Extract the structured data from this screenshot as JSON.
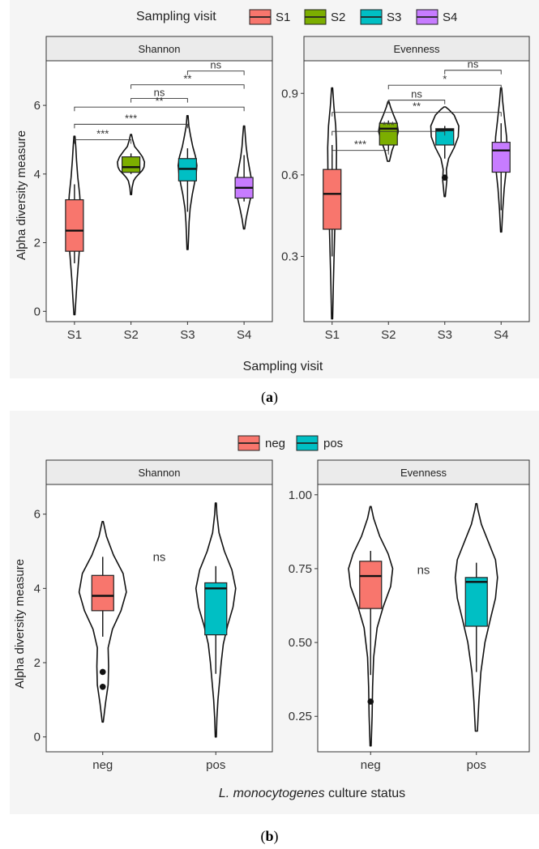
{
  "panel_a": {
    "caption_letter": "a",
    "legend": {
      "title": "Sampling visit",
      "items": [
        {
          "label": "S1",
          "color": "#f8766d"
        },
        {
          "label": "S2",
          "color": "#7cae00"
        },
        {
          "label": "S3",
          "color": "#00bfc4"
        },
        {
          "label": "S4",
          "color": "#c77cff"
        }
      ]
    },
    "xlabel": "Sampling visit",
    "ylabel": "Alpha diversity measure"
  },
  "panel_b": {
    "caption_letter": "b",
    "legend": {
      "items": [
        {
          "label": "neg",
          "color": "#f8766d"
        },
        {
          "label": "pos",
          "color": "#00bfc4"
        }
      ]
    },
    "xlabel_italic": "L. monocytogenes",
    "xlabel_rest": " culture status",
    "ylabel": "Alpha diversity measure"
  },
  "chart_data": [
    {
      "type": "violin",
      "facet": "Shannon",
      "categories": [
        "S1",
        "S2",
        "S3",
        "S4"
      ],
      "ylim": [
        -0.3,
        7.3
      ],
      "yticks": [
        0,
        2,
        4,
        6
      ],
      "ytick_labels": [
        "0",
        "2",
        "4",
        "6"
      ],
      "boxes": [
        {
          "q1": 1.75,
          "median": 2.35,
          "q3": 3.25,
          "whisker_low": 1.4,
          "whisker_high": 3.7,
          "outliers": []
        },
        {
          "q1": 4.05,
          "median": 4.2,
          "q3": 4.5,
          "whisker_low": 4.0,
          "whisker_high": 4.6,
          "outliers": []
        },
        {
          "q1": 3.8,
          "median": 4.15,
          "q3": 4.45,
          "whisker_low": 2.9,
          "whisker_high": 4.75,
          "outliers": []
        },
        {
          "q1": 3.3,
          "median": 3.6,
          "q3": 3.9,
          "whisker_low": 3.2,
          "whisker_high": 4.55,
          "outliers": []
        }
      ],
      "violins": [
        [
          [
            -0.1,
            0.02
          ],
          [
            0.4,
            0.06
          ],
          [
            0.9,
            0.1
          ],
          [
            1.4,
            0.15
          ],
          [
            1.9,
            0.2
          ],
          [
            2.4,
            0.23
          ],
          [
            2.9,
            0.24
          ],
          [
            3.4,
            0.2
          ],
          [
            3.9,
            0.13
          ],
          [
            4.4,
            0.08
          ],
          [
            4.8,
            0.05
          ],
          [
            5.1,
            0.02
          ]
        ],
        [
          [
            3.4,
            0.02
          ],
          [
            3.6,
            0.04
          ],
          [
            3.8,
            0.1
          ],
          [
            3.9,
            0.18
          ],
          [
            4.0,
            0.3
          ],
          [
            4.1,
            0.43
          ],
          [
            4.2,
            0.5
          ],
          [
            4.35,
            0.52
          ],
          [
            4.5,
            0.44
          ],
          [
            4.65,
            0.3
          ],
          [
            4.8,
            0.14
          ],
          [
            5.0,
            0.06
          ],
          [
            5.15,
            0.02
          ]
        ],
        [
          [
            1.8,
            0.02
          ],
          [
            2.2,
            0.04
          ],
          [
            2.6,
            0.06
          ],
          [
            3.0,
            0.1
          ],
          [
            3.4,
            0.18
          ],
          [
            3.7,
            0.26
          ],
          [
            4.0,
            0.33
          ],
          [
            4.25,
            0.36
          ],
          [
            4.5,
            0.31
          ],
          [
            4.8,
            0.2
          ],
          [
            5.1,
            0.12
          ],
          [
            5.4,
            0.05
          ],
          [
            5.7,
            0.02
          ]
        ],
        [
          [
            2.4,
            0.02
          ],
          [
            2.7,
            0.08
          ],
          [
            3.0,
            0.16
          ],
          [
            3.3,
            0.25
          ],
          [
            3.6,
            0.3
          ],
          [
            3.9,
            0.27
          ],
          [
            4.2,
            0.2
          ],
          [
            4.5,
            0.13
          ],
          [
            4.8,
            0.08
          ],
          [
            5.1,
            0.05
          ],
          [
            5.4,
            0.02
          ]
        ]
      ],
      "significance": [
        {
          "from": "S3",
          "to": "S4",
          "label": "ns",
          "y": 7.0
        },
        {
          "from": "S2",
          "to": "S4",
          "label": "**",
          "y": 6.6
        },
        {
          "from": "S2",
          "to": "S3",
          "label": "ns",
          "y": 6.2
        },
        {
          "from": "S1",
          "to": "S4",
          "label": "**",
          "y": 5.95
        },
        {
          "from": "S1",
          "to": "S3",
          "label": "***",
          "y": 5.45
        },
        {
          "from": "S1",
          "to": "S2",
          "label": "***",
          "y": 5.0
        }
      ]
    },
    {
      "type": "violin",
      "facet": "Evenness",
      "categories": [
        "S1",
        "S2",
        "S3",
        "S4"
      ],
      "ylim": [
        0.06,
        1.02
      ],
      "yticks": [
        0.3,
        0.6,
        0.9
      ],
      "ytick_labels": [
        "0.3",
        "0.6",
        "0.9"
      ],
      "boxes": [
        {
          "q1": 0.4,
          "median": 0.53,
          "q3": 0.62,
          "whisker_low": 0.3,
          "whisker_high": 0.71,
          "outliers": []
        },
        {
          "q1": 0.71,
          "median": 0.77,
          "q3": 0.79,
          "whisker_low": 0.69,
          "whisker_high": 0.8,
          "outliers": []
        },
        {
          "q1": 0.71,
          "median": 0.765,
          "q3": 0.77,
          "whisker_low": 0.66,
          "whisker_high": 0.78,
          "outliers": [
            0.59
          ]
        },
        {
          "q1": 0.61,
          "median": 0.69,
          "q3": 0.72,
          "whisker_low": 0.47,
          "whisker_high": 0.79,
          "outliers": []
        }
      ],
      "violins": [
        [
          [
            0.07,
            0.02
          ],
          [
            0.2,
            0.05
          ],
          [
            0.35,
            0.09
          ],
          [
            0.5,
            0.13
          ],
          [
            0.6,
            0.16
          ],
          [
            0.7,
            0.17
          ],
          [
            0.78,
            0.14
          ],
          [
            0.85,
            0.07
          ],
          [
            0.92,
            0.02
          ]
        ],
        [
          [
            0.65,
            0.04
          ],
          [
            0.69,
            0.14
          ],
          [
            0.73,
            0.3
          ],
          [
            0.76,
            0.38
          ],
          [
            0.79,
            0.33
          ],
          [
            0.82,
            0.2
          ],
          [
            0.85,
            0.08
          ],
          [
            0.87,
            0.02
          ]
        ],
        [
          [
            0.52,
            0.02
          ],
          [
            0.58,
            0.08
          ],
          [
            0.62,
            0.06
          ],
          [
            0.66,
            0.15
          ],
          [
            0.7,
            0.36
          ],
          [
            0.74,
            0.52
          ],
          [
            0.78,
            0.54
          ],
          [
            0.82,
            0.36
          ],
          [
            0.84,
            0.16
          ],
          [
            0.85,
            0.03
          ]
        ],
        [
          [
            0.39,
            0.02
          ],
          [
            0.47,
            0.06
          ],
          [
            0.55,
            0.12
          ],
          [
            0.62,
            0.2
          ],
          [
            0.68,
            0.24
          ],
          [
            0.74,
            0.21
          ],
          [
            0.8,
            0.14
          ],
          [
            0.87,
            0.06
          ],
          [
            0.92,
            0.02
          ]
        ]
      ],
      "significance": [
        {
          "from": "S3",
          "to": "S4",
          "label": "ns",
          "y": 0.985
        },
        {
          "from": "S2",
          "to": "S4",
          "label": "*",
          "y": 0.93
        },
        {
          "from": "S2",
          "to": "S3",
          "label": "ns",
          "y": 0.875
        },
        {
          "from": "S1",
          "to": "S4",
          "label": "**",
          "y": 0.83
        },
        {
          "from": "S1",
          "to": "S3",
          "label": "***",
          "y": 0.76
        },
        {
          "from": "S1",
          "to": "S2",
          "label": "***",
          "y": 0.69
        }
      ]
    },
    {
      "type": "violin",
      "facet": "Shannon",
      "categories": [
        "neg",
        "pos"
      ],
      "ylim": [
        -0.4,
        6.8
      ],
      "yticks": [
        0,
        2,
        4,
        6
      ],
      "ytick_labels": [
        "0",
        "2",
        "4",
        "6"
      ],
      "boxes": [
        {
          "q1": 3.4,
          "median": 3.8,
          "q3": 4.35,
          "whisker_low": 2.7,
          "whisker_high": 4.85,
          "outliers": [
            1.75,
            1.35
          ]
        },
        {
          "q1": 2.75,
          "median": 4.0,
          "q3": 4.15,
          "whisker_low": 1.7,
          "whisker_high": 4.6,
          "outliers": []
        }
      ],
      "violins": [
        [
          [
            0.4,
            0.01
          ],
          [
            0.9,
            0.05
          ],
          [
            1.4,
            0.1
          ],
          [
            1.9,
            0.11
          ],
          [
            2.4,
            0.1
          ],
          [
            2.9,
            0.18
          ],
          [
            3.4,
            0.34
          ],
          [
            3.9,
            0.44
          ],
          [
            4.4,
            0.38
          ],
          [
            4.9,
            0.2
          ],
          [
            5.4,
            0.07
          ],
          [
            5.8,
            0.01
          ]
        ],
        [
          [
            0.0,
            0.01
          ],
          [
            0.5,
            0.02
          ],
          [
            1.0,
            0.04
          ],
          [
            1.5,
            0.07
          ],
          [
            2.0,
            0.1
          ],
          [
            2.5,
            0.14
          ],
          [
            3.0,
            0.22
          ],
          [
            3.5,
            0.32
          ],
          [
            4.0,
            0.37
          ],
          [
            4.5,
            0.3
          ],
          [
            5.0,
            0.16
          ],
          [
            5.5,
            0.06
          ],
          [
            6.0,
            0.02
          ],
          [
            6.3,
            0.01
          ]
        ]
      ],
      "significance": [
        {
          "from": "neg",
          "to": "pos",
          "label": "ns",
          "y": 4.85
        }
      ]
    },
    {
      "type": "violin",
      "facet": "Evenness",
      "categories": [
        "neg",
        "pos"
      ],
      "ylim": [
        0.13,
        1.035
      ],
      "yticks": [
        0.25,
        0.5,
        0.75,
        1.0
      ],
      "ytick_labels": [
        "0.25",
        "0.50",
        "0.75",
        "1.00"
      ],
      "boxes": [
        {
          "q1": 0.615,
          "median": 0.725,
          "q3": 0.775,
          "whisker_low": 0.39,
          "whisker_high": 0.81,
          "outliers": [
            0.3
          ]
        },
        {
          "q1": 0.555,
          "median": 0.705,
          "q3": 0.72,
          "whisker_low": 0.4,
          "whisker_high": 0.77,
          "outliers": []
        }
      ],
      "violins": [
        [
          [
            0.15,
            0.01
          ],
          [
            0.25,
            0.03
          ],
          [
            0.35,
            0.04
          ],
          [
            0.45,
            0.06
          ],
          [
            0.55,
            0.13
          ],
          [
            0.62,
            0.25
          ],
          [
            0.69,
            0.4
          ],
          [
            0.75,
            0.44
          ],
          [
            0.8,
            0.35
          ],
          [
            0.86,
            0.18
          ],
          [
            0.92,
            0.06
          ],
          [
            0.96,
            0.01
          ]
        ],
        [
          [
            0.2,
            0.02
          ],
          [
            0.3,
            0.05
          ],
          [
            0.4,
            0.09
          ],
          [
            0.5,
            0.17
          ],
          [
            0.58,
            0.28
          ],
          [
            0.65,
            0.38
          ],
          [
            0.72,
            0.42
          ],
          [
            0.78,
            0.38
          ],
          [
            0.84,
            0.24
          ],
          [
            0.9,
            0.1
          ],
          [
            0.95,
            0.03
          ],
          [
            0.97,
            0.01
          ]
        ]
      ],
      "significance": [
        {
          "from": "neg",
          "to": "pos",
          "label": "ns",
          "y": 0.745
        }
      ]
    }
  ]
}
